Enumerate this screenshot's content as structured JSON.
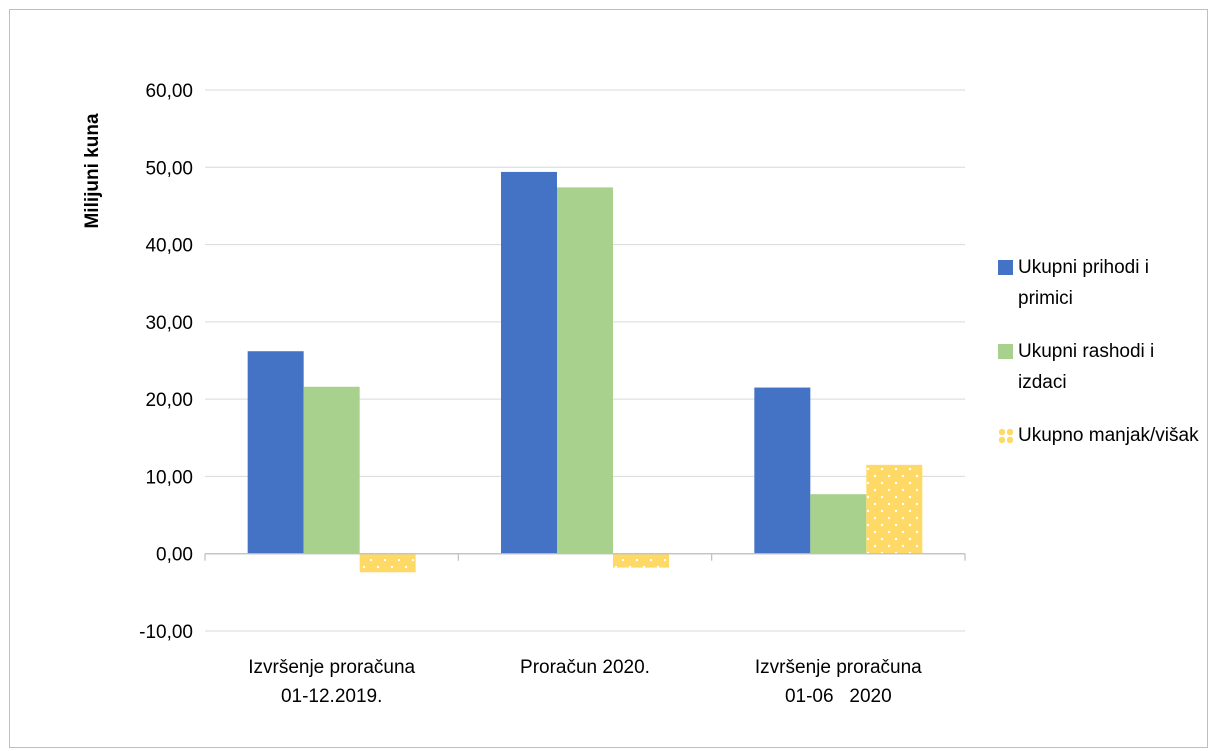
{
  "chart_data": {
    "type": "bar",
    "ylabel": "Milijuni kuna",
    "xlabel": "",
    "ylim": [
      -10,
      60
    ],
    "y_ticks": [
      "-10,00",
      "0,00",
      "10,00",
      "20,00",
      "30,00",
      "40,00",
      "50,00",
      "60,00"
    ],
    "categories": [
      [
        "Izvršenje proračuna",
        "01-12.2019."
      ],
      [
        "Proračun 2020."
      ],
      [
        "Izvršenje proračuna",
        "01-06   2020"
      ]
    ],
    "series": [
      {
        "name": "Ukupni prihodi i primici",
        "values": [
          26.2,
          49.4,
          21.5
        ],
        "color": "#4472c4",
        "pattern": "solid"
      },
      {
        "name": "Ukupni rashodi i izdaci",
        "values": [
          21.6,
          47.4,
          7.7
        ],
        "color": "#a9d18e",
        "pattern": "solid"
      },
      {
        "name": "Ukupno manjak/višak",
        "values": [
          -2.4,
          -1.8,
          11.5
        ],
        "color": "#ffd966",
        "pattern": "dots"
      }
    ],
    "grid": true,
    "legend_position": "right"
  }
}
